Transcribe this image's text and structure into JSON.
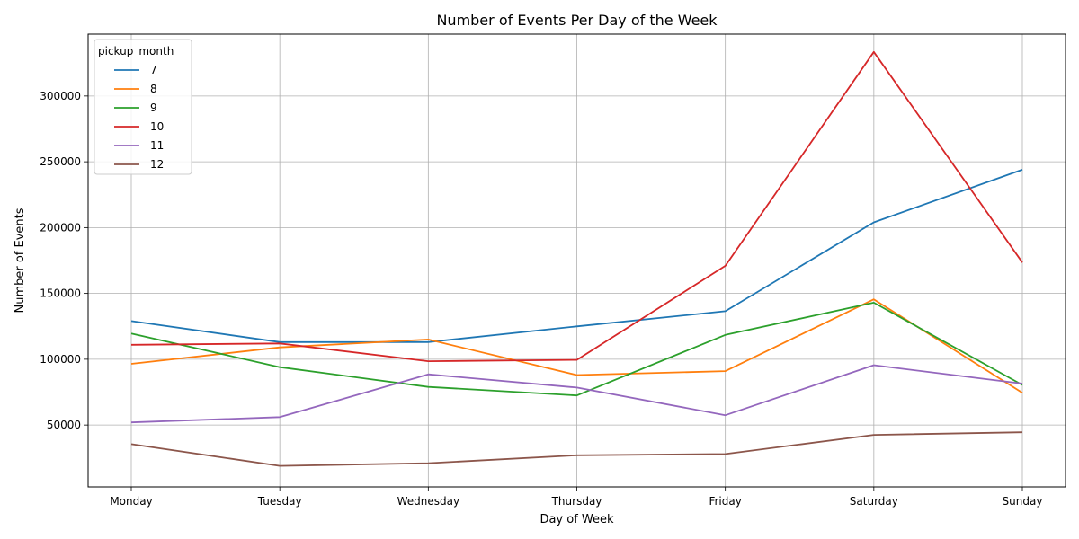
{
  "chart_data": {
    "type": "line",
    "title": "Number of Events Per Day of the Week",
    "xlabel": "Day of Week",
    "ylabel": "Number of Events",
    "categories": [
      "Monday",
      "Tuesday",
      "Wednesday",
      "Thursday",
      "Friday",
      "Saturday",
      "Sunday"
    ],
    "ylim": [
      3000,
      347000
    ],
    "yticks": [
      50000,
      100000,
      150000,
      200000,
      250000,
      300000
    ],
    "ytick_labels": [
      "50000",
      "100000",
      "150000",
      "200000",
      "250000",
      "300000"
    ],
    "grid": true,
    "legend": {
      "title": "pickup_month",
      "placement": "top-left"
    },
    "series": [
      {
        "name": "7",
        "color": "#1f77b4",
        "values": [
          129000,
          113000,
          113000,
          125000,
          136500,
          204000,
          244000
        ]
      },
      {
        "name": "8",
        "color": "#ff7f0e",
        "values": [
          96500,
          109000,
          115000,
          88000,
          91000,
          145500,
          74500
        ]
      },
      {
        "name": "9",
        "color": "#2ca02c",
        "values": [
          119500,
          94000,
          79000,
          72500,
          118500,
          143000,
          80500
        ]
      },
      {
        "name": "10",
        "color": "#d62728",
        "values": [
          111000,
          112000,
          98500,
          99500,
          171000,
          333500,
          173500
        ]
      },
      {
        "name": "11",
        "color": "#9467bd",
        "values": [
          52000,
          56000,
          88500,
          78500,
          57500,
          95500,
          81500
        ]
      },
      {
        "name": "12",
        "color": "#8c564b",
        "values": [
          35500,
          19000,
          21000,
          27000,
          28000,
          42500,
          44500
        ]
      }
    ]
  }
}
